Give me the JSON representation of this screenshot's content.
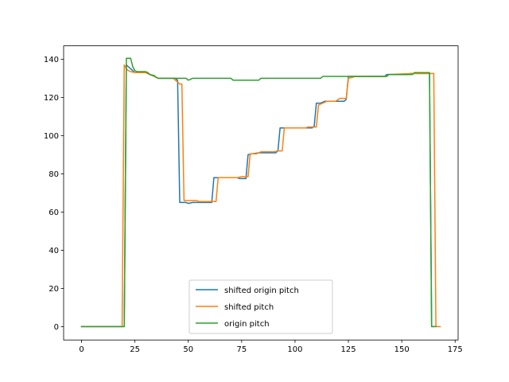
{
  "chart_data": {
    "type": "line",
    "title": "",
    "xlabel": "",
    "ylabel": "",
    "xlim": [
      -8.4,
      176.4
    ],
    "ylim": [
      -7.0,
      147.0
    ],
    "xticks": [
      0,
      25,
      50,
      75,
      100,
      125,
      150,
      175
    ],
    "yticks": [
      0,
      20,
      40,
      60,
      80,
      100,
      120,
      140
    ],
    "xtick_labels": [
      "0",
      "25",
      "50",
      "75",
      "100",
      "125",
      "150",
      "175"
    ],
    "ytick_labels": [
      "0",
      "20",
      "40",
      "60",
      "80",
      "100",
      "120",
      "140"
    ],
    "grid": false,
    "legend_position": "bottom-center",
    "series": [
      {
        "name": "shifted origin pitch",
        "color": "#1f77b4",
        "points": [
          [
            0,
            0
          ],
          [
            19,
            0
          ],
          [
            20,
            0
          ],
          [
            21,
            137
          ],
          [
            22,
            136
          ],
          [
            23,
            135
          ],
          [
            24,
            134
          ],
          [
            25,
            133
          ],
          [
            30,
            133
          ],
          [
            32,
            132
          ],
          [
            34,
            131
          ],
          [
            36,
            130
          ],
          [
            44,
            130
          ],
          [
            45,
            129
          ],
          [
            46,
            65
          ],
          [
            49,
            65
          ],
          [
            50,
            64.5
          ],
          [
            52,
            65
          ],
          [
            60,
            65
          ],
          [
            61,
            65
          ],
          [
            62,
            78
          ],
          [
            73,
            78
          ],
          [
            74,
            77.5
          ],
          [
            77,
            77.5
          ],
          [
            78,
            90
          ],
          [
            80,
            90.5
          ],
          [
            83,
            91
          ],
          [
            91,
            91
          ],
          [
            92,
            92
          ],
          [
            93,
            104
          ],
          [
            108,
            104
          ],
          [
            109,
            105
          ],
          [
            110,
            117
          ],
          [
            112,
            117
          ],
          [
            114,
            118
          ],
          [
            123,
            118
          ],
          [
            124,
            119
          ],
          [
            125,
            131
          ],
          [
            127,
            131
          ],
          [
            142,
            131
          ],
          [
            143,
            132
          ],
          [
            153,
            132
          ],
          [
            154,
            132.5
          ],
          [
            163,
            132.5
          ],
          [
            164,
            0
          ],
          [
            165,
            0
          ]
        ]
      },
      {
        "name": "shifted pitch",
        "color": "#ff7f0e",
        "points": [
          [
            0,
            0
          ],
          [
            19,
            0
          ],
          [
            20,
            137
          ],
          [
            21,
            135
          ],
          [
            22,
            134
          ],
          [
            23,
            133.5
          ],
          [
            25,
            133
          ],
          [
            30,
            133
          ],
          [
            32,
            132
          ],
          [
            34,
            131
          ],
          [
            36,
            130
          ],
          [
            43,
            130
          ],
          [
            44,
            129
          ],
          [
            45,
            128
          ],
          [
            46,
            127
          ],
          [
            47,
            127
          ],
          [
            48,
            66
          ],
          [
            54,
            66
          ],
          [
            55,
            65.5
          ],
          [
            63,
            65.5
          ],
          [
            64,
            78
          ],
          [
            73,
            78
          ],
          [
            75,
            78.5
          ],
          [
            78,
            78.5
          ],
          [
            79,
            90.5
          ],
          [
            82,
            90.5
          ],
          [
            84,
            91.5
          ],
          [
            90,
            91.5
          ],
          [
            92,
            92
          ],
          [
            94,
            92
          ],
          [
            95,
            104
          ],
          [
            105,
            104
          ],
          [
            106,
            104.5
          ],
          [
            110,
            104.5
          ],
          [
            111,
            116
          ],
          [
            113,
            117
          ],
          [
            115,
            118
          ],
          [
            119,
            118
          ],
          [
            121,
            119.5
          ],
          [
            124,
            119.5
          ],
          [
            125,
            130
          ],
          [
            127,
            130.5
          ],
          [
            128,
            131
          ],
          [
            143,
            131
          ],
          [
            144,
            132
          ],
          [
            155,
            132.5
          ],
          [
            165,
            132.5
          ],
          [
            166,
            0
          ],
          [
            168,
            0
          ]
        ]
      },
      {
        "name": "origin pitch",
        "color": "#2ca02c",
        "points": [
          [
            0,
            0
          ],
          [
            19,
            0
          ],
          [
            20,
            0
          ],
          [
            21,
            140.5
          ],
          [
            23,
            140.5
          ],
          [
            24,
            136
          ],
          [
            25,
            134
          ],
          [
            26,
            133.5
          ],
          [
            30,
            133.5
          ],
          [
            31,
            133
          ],
          [
            32,
            132
          ],
          [
            34,
            131.5
          ],
          [
            35,
            130.5
          ],
          [
            36,
            130
          ],
          [
            49,
            130
          ],
          [
            50,
            129
          ],
          [
            52,
            130
          ],
          [
            70,
            130
          ],
          [
            71,
            129
          ],
          [
            83,
            129
          ],
          [
            84,
            130
          ],
          [
            112,
            130
          ],
          [
            113,
            131
          ],
          [
            143,
            131
          ],
          [
            144,
            132
          ],
          [
            155,
            132
          ],
          [
            156,
            133
          ],
          [
            163,
            133
          ],
          [
            164,
            0
          ],
          [
            166,
            0
          ]
        ]
      }
    ]
  }
}
